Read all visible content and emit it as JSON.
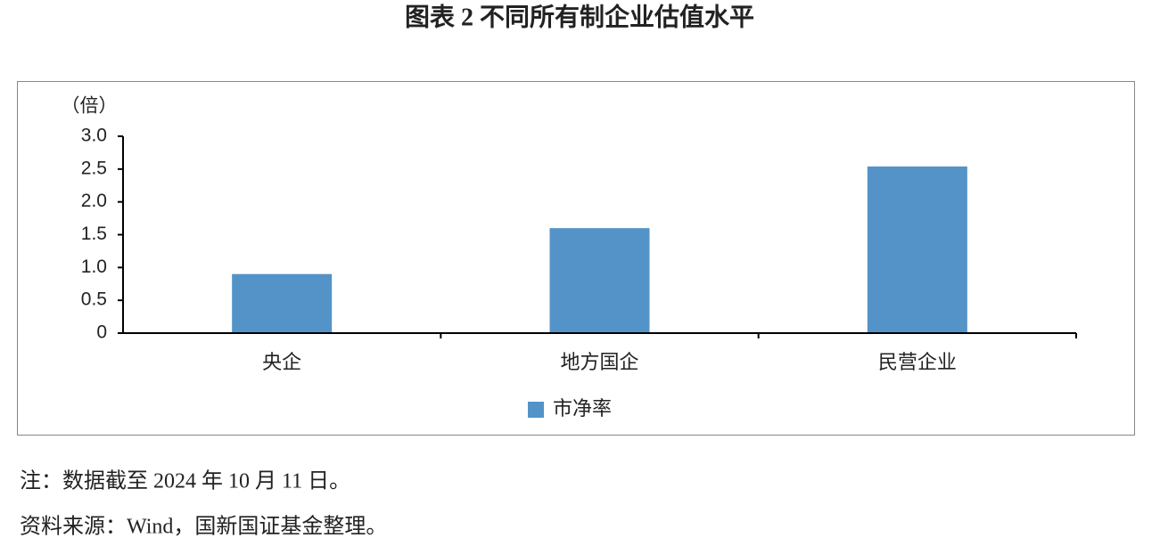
{
  "chart_data": {
    "type": "bar",
    "title": "图表 2  不同所有制企业估值水平",
    "y_label": "（倍）",
    "categories": [
      "央企",
      "地方国企",
      "民营企业"
    ],
    "series": [
      {
        "name": "市净率",
        "color": "#5393c8",
        "values": [
          0.9,
          1.6,
          2.54
        ]
      }
    ],
    "ylim": [
      0,
      3
    ],
    "yticks": [
      0,
      0.5,
      {
        "value": 1,
        "label": "1.0"
      },
      1.5,
      {
        "value": 2,
        "label": "2.0"
      },
      2.5,
      {
        "value": 3,
        "label": "3.0"
      }
    ],
    "legend": "bottom",
    "notes": [
      "注：数据截至 2024 年 10 月 11 日。",
      "资料来源：Wind，国新国证基金整理。"
    ]
  }
}
